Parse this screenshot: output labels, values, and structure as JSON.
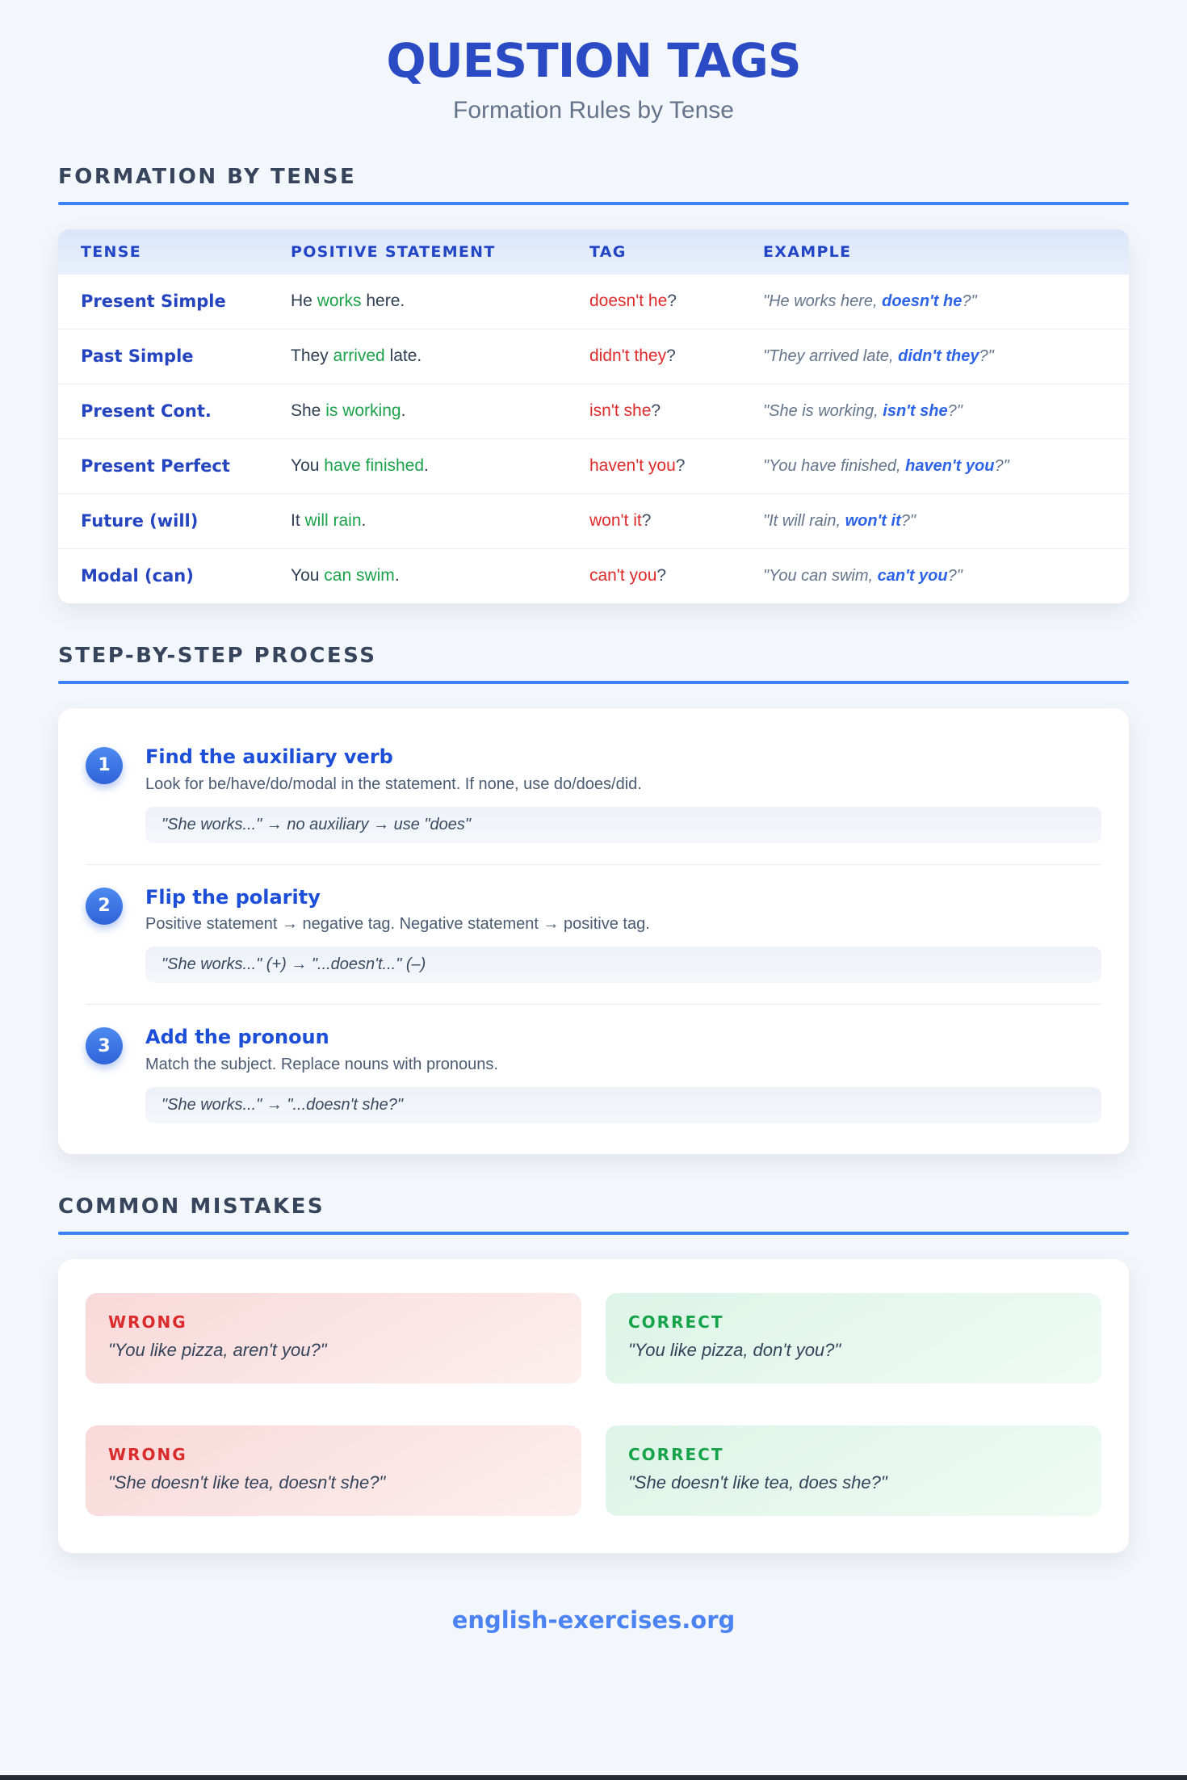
{
  "page": {
    "title": "QUESTION TAGS",
    "subtitle": "Formation Rules by Tense",
    "footer": "english-exercises.org"
  },
  "colors": {
    "accent_blue": "#3b82f6",
    "title_blue": "#2b4bc4",
    "verb_green": "#1ca24b",
    "tag_red": "#df2b2b",
    "example_tag_blue": "#2c63e8",
    "correct_green": "#17a34a"
  },
  "formation": {
    "heading": "FORMATION BY TENSE",
    "columns": [
      "TENSE",
      "POSITIVE STATEMENT",
      "TAG",
      "EXAMPLE"
    ],
    "rows": [
      {
        "tense": "Present Simple",
        "s_pre": "He ",
        "s_verb": "works",
        "s_post": " here.",
        "tag": "doesn't he",
        "q": "?",
        "ex_pre": "\"He works here, ",
        "ex_tag": "doesn't he",
        "ex_post": "?\""
      },
      {
        "tense": "Past Simple",
        "s_pre": "They ",
        "s_verb": "arrived",
        "s_post": " late.",
        "tag": "didn't they",
        "q": "?",
        "ex_pre": "\"They arrived late, ",
        "ex_tag": "didn't they",
        "ex_post": "?\""
      },
      {
        "tense": "Present Cont.",
        "s_pre": "She ",
        "s_verb": "is working",
        "s_post": ".",
        "tag": "isn't she",
        "q": "?",
        "ex_pre": "\"She is working, ",
        "ex_tag": "isn't she",
        "ex_post": "?\""
      },
      {
        "tense": "Present Perfect",
        "s_pre": "You ",
        "s_verb": "have finished",
        "s_post": ".",
        "tag": "haven't you",
        "q": "?",
        "ex_pre": "\"You have finished, ",
        "ex_tag": "haven't you",
        "ex_post": "?\""
      },
      {
        "tense": "Future (will)",
        "s_pre": "It ",
        "s_verb": "will rain",
        "s_post": ".",
        "tag": "won't it",
        "q": "?",
        "ex_pre": "\"It will rain, ",
        "ex_tag": "won't it",
        "ex_post": "?\""
      },
      {
        "tense": "Modal (can)",
        "s_pre": "You ",
        "s_verb": "can swim",
        "s_post": ".",
        "tag": "can't you",
        "q": "?",
        "ex_pre": "\"You can swim, ",
        "ex_tag": "can't you",
        "ex_post": "?\""
      }
    ]
  },
  "steps": {
    "heading": "STEP-BY-STEP PROCESS",
    "items": [
      {
        "number": "1",
        "title": "Find the auxiliary verb",
        "description": "Look for be/have/do/modal in the statement. If none, use do/does/did.",
        "example": "\"She works...\" → no auxiliary → use \"does\""
      },
      {
        "number": "2",
        "title": "Flip the polarity",
        "description": "Positive statement → negative tag. Negative statement → positive tag.",
        "example": "\"She works...\" (+) → \"...doesn't...\" (–)"
      },
      {
        "number": "3",
        "title": "Add the pronoun",
        "description": "Match the subject. Replace nouns with pronouns.",
        "example": "\"She works...\" → \"...doesn't she?\""
      }
    ]
  },
  "mistakes": {
    "heading": "COMMON MISTAKES",
    "wrong_label": "WRONG",
    "correct_label": "CORRECT",
    "pairs": [
      {
        "wrong": "\"You like pizza, aren't you?\"",
        "correct": "\"You like pizza, don't you?\""
      },
      {
        "wrong": "\"She doesn't like tea, doesn't she?\"",
        "correct": "\"She doesn't like tea, does she?\""
      }
    ]
  }
}
